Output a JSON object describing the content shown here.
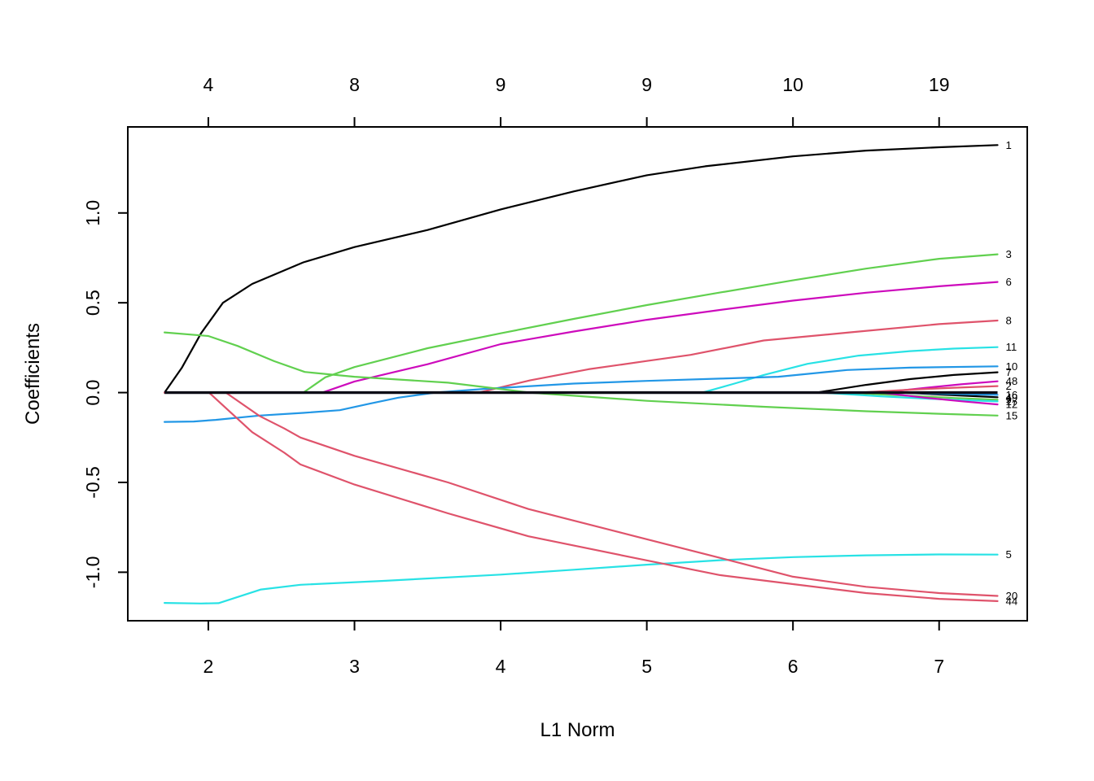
{
  "figure": {
    "background": "#ffffff"
  },
  "chart_data": {
    "type": "line",
    "title": "",
    "xlabel": "L1 Norm",
    "ylabel": "Coefficients",
    "xlim": [
      1.449,
      7.603
    ],
    "ylim": [
      -1.27,
      1.479
    ],
    "grid": false,
    "legend_position": "right-edge-labels",
    "x_ticks": [
      2,
      3,
      4,
      5,
      6,
      7
    ],
    "x_tick_labels": [
      "2",
      "3",
      "4",
      "5",
      "6",
      "7"
    ],
    "y_ticks": [
      1.0,
      0.5,
      0.0,
      -0.5,
      -1.0
    ],
    "y_tick_labels": [
      "1.0",
      "0.5",
      "0.0",
      "-0.5",
      "-1.0"
    ],
    "top_axis": {
      "tick_values": [
        2,
        3,
        4,
        5,
        6,
        7
      ],
      "labels": [
        "4",
        "8",
        "9",
        "9",
        "10",
        "19"
      ]
    },
    "palette": {
      "black": "#000000",
      "red": "#DF536B",
      "green": "#61D04F",
      "blue": "#2297E6",
      "cyan": "#28E2E5",
      "magenta": "#CD0BBC"
    },
    "zero_line": {
      "color": "#0b0b16",
      "width": 3.4,
      "points": [
        [
          1.7,
          0
        ],
        [
          7.4,
          0
        ]
      ]
    },
    "series": [
      {
        "label": "1",
        "color": "black",
        "points": [
          [
            1.7,
            0
          ],
          [
            1.82,
            0.14
          ],
          [
            1.95,
            0.33
          ],
          [
            2.1,
            0.5
          ],
          [
            2.3,
            0.605
          ],
          [
            2.65,
            0.725
          ],
          [
            3.0,
            0.81
          ],
          [
            3.5,
            0.905
          ],
          [
            4.0,
            1.02
          ],
          [
            4.5,
            1.12
          ],
          [
            5.0,
            1.21
          ],
          [
            5.4,
            1.26
          ],
          [
            6.0,
            1.315
          ],
          [
            6.5,
            1.347
          ],
          [
            7.0,
            1.366
          ],
          [
            7.4,
            1.378
          ]
        ]
      },
      {
        "label": "3",
        "color": "green",
        "points": [
          [
            2.65,
            0
          ],
          [
            2.8,
            0.085
          ],
          [
            3.0,
            0.142
          ],
          [
            3.5,
            0.247
          ],
          [
            4.0,
            0.33
          ],
          [
            4.5,
            0.41
          ],
          [
            5.0,
            0.487
          ],
          [
            5.5,
            0.557
          ],
          [
            6.0,
            0.625
          ],
          [
            6.5,
            0.69
          ],
          [
            7.0,
            0.745
          ],
          [
            7.4,
            0.77
          ]
        ]
      },
      {
        "label": "6",
        "color": "magenta",
        "points": [
          [
            2.78,
            0
          ],
          [
            3.0,
            0.062
          ],
          [
            3.5,
            0.158
          ],
          [
            4.0,
            0.27
          ],
          [
            4.5,
            0.34
          ],
          [
            5.0,
            0.405
          ],
          [
            5.5,
            0.46
          ],
          [
            6.0,
            0.512
          ],
          [
            6.5,
            0.556
          ],
          [
            7.0,
            0.592
          ],
          [
            7.4,
            0.616
          ]
        ]
      },
      {
        "label": "8",
        "color": "red",
        "points": [
          [
            3.85,
            0
          ],
          [
            4.2,
            0.068
          ],
          [
            4.6,
            0.13
          ],
          [
            5.0,
            0.176
          ],
          [
            5.3,
            0.21
          ],
          [
            5.8,
            0.29
          ],
          [
            6.4,
            0.336
          ],
          [
            7.0,
            0.381
          ],
          [
            7.4,
            0.401
          ]
        ]
      },
      {
        "label": "11",
        "color": "cyan",
        "points": [
          [
            5.38,
            0
          ],
          [
            5.6,
            0.05
          ],
          [
            5.8,
            0.098
          ],
          [
            6.1,
            0.16
          ],
          [
            6.45,
            0.206
          ],
          [
            6.8,
            0.231
          ],
          [
            7.1,
            0.245
          ],
          [
            7.4,
            0.253
          ]
        ]
      },
      {
        "label": "10",
        "color": "blue",
        "points": [
          [
            1.7,
            -0.163
          ],
          [
            1.9,
            -0.161
          ],
          [
            2.05,
            -0.152
          ],
          [
            2.35,
            -0.128
          ],
          [
            2.65,
            -0.113
          ],
          [
            2.9,
            -0.098
          ],
          [
            3.1,
            -0.062
          ],
          [
            3.3,
            -0.028
          ],
          [
            3.55,
            0.0
          ],
          [
            3.9,
            0.021
          ],
          [
            4.5,
            0.05
          ],
          [
            5.0,
            0.065
          ],
          [
            5.5,
            0.078
          ],
          [
            5.9,
            0.088
          ],
          [
            6.37,
            0.126
          ],
          [
            6.8,
            0.139
          ],
          [
            7.4,
            0.146
          ]
        ]
      },
      {
        "label": "7",
        "color": "black",
        "points": [
          [
            6.16,
            0
          ],
          [
            6.5,
            0.043
          ],
          [
            6.8,
            0.075
          ],
          [
            7.1,
            0.098
          ],
          [
            7.4,
            0.113
          ]
        ]
      },
      {
        "label": "48",
        "color": "magenta",
        "points": [
          [
            6.6,
            0
          ],
          [
            6.9,
            0.026
          ],
          [
            7.15,
            0.046
          ],
          [
            7.4,
            0.063
          ]
        ]
      },
      {
        "label": "2",
        "color": "red",
        "points": [
          [
            6.45,
            0
          ],
          [
            6.8,
            0.016
          ],
          [
            7.1,
            0.027
          ],
          [
            7.4,
            0.036
          ]
        ]
      },
      {
        "label": "49",
        "color": "black",
        "points": [
          [
            6.75,
            0
          ],
          [
            7.05,
            -0.013
          ],
          [
            7.4,
            -0.026
          ]
        ]
      },
      {
        "label": "16",
        "color": "blue",
        "points": [
          [
            6.7,
            0
          ],
          [
            7.05,
            -0.007
          ],
          [
            7.4,
            -0.013
          ]
        ]
      },
      {
        "label": "9",
        "color": "green",
        "points": [
          [
            6.35,
            0
          ],
          [
            6.8,
            -0.018
          ],
          [
            7.1,
            -0.03
          ],
          [
            7.4,
            -0.04
          ]
        ]
      },
      {
        "label": "17",
        "color": "cyan",
        "points": [
          [
            6.2,
            0
          ],
          [
            6.6,
            -0.021
          ],
          [
            7.0,
            -0.037
          ],
          [
            7.4,
            -0.049
          ]
        ]
      },
      {
        "label": "12",
        "color": "magenta",
        "points": [
          [
            6.6,
            0
          ],
          [
            6.9,
            -0.028
          ],
          [
            7.15,
            -0.048
          ],
          [
            7.4,
            -0.066
          ]
        ]
      },
      {
        "label": "15",
        "color": "green",
        "points": [
          [
            1.7,
            0.335
          ],
          [
            2.0,
            0.315
          ],
          [
            2.2,
            0.26
          ],
          [
            2.45,
            0.175
          ],
          [
            2.66,
            0.115
          ],
          [
            3.0,
            0.088
          ],
          [
            3.64,
            0.055
          ],
          [
            4.2,
            0.0
          ],
          [
            5.0,
            -0.046
          ],
          [
            5.8,
            -0.079
          ],
          [
            6.5,
            -0.104
          ],
          [
            7.0,
            -0.118
          ],
          [
            7.4,
            -0.128
          ]
        ]
      },
      {
        "label": "5",
        "color": "cyan",
        "points": [
          [
            1.7,
            -1.171
          ],
          [
            1.95,
            -1.174
          ],
          [
            2.07,
            -1.172
          ],
          [
            2.36,
            -1.096
          ],
          [
            2.63,
            -1.07
          ],
          [
            3.2,
            -1.048
          ],
          [
            4.0,
            -1.013
          ],
          [
            4.5,
            -0.986
          ],
          [
            5.0,
            -0.958
          ],
          [
            5.5,
            -0.933
          ],
          [
            6.0,
            -0.916
          ],
          [
            6.5,
            -0.906
          ],
          [
            7.0,
            -0.901
          ],
          [
            7.4,
            -0.902
          ]
        ]
      },
      {
        "label": "20",
        "color": "red",
        "points": [
          [
            1.7,
            0
          ],
          [
            2.12,
            0
          ],
          [
            2.35,
            -0.13
          ],
          [
            2.52,
            -0.2
          ],
          [
            2.63,
            -0.25
          ],
          [
            3.0,
            -0.352
          ],
          [
            3.64,
            -0.5
          ],
          [
            4.19,
            -0.648
          ],
          [
            4.92,
            -0.8
          ],
          [
            5.5,
            -0.92
          ],
          [
            6.0,
            -1.025
          ],
          [
            6.5,
            -1.081
          ],
          [
            7.0,
            -1.116
          ],
          [
            7.4,
            -1.132
          ]
        ]
      },
      {
        "label": "44",
        "color": "red",
        "points": [
          [
            1.7,
            0
          ],
          [
            2.005,
            0
          ],
          [
            2.3,
            -0.22
          ],
          [
            2.52,
            -0.335
          ],
          [
            2.63,
            -0.4
          ],
          [
            3.0,
            -0.512
          ],
          [
            3.64,
            -0.672
          ],
          [
            4.19,
            -0.8
          ],
          [
            4.92,
            -0.921
          ],
          [
            5.5,
            -1.016
          ],
          [
            6.0,
            -1.066
          ],
          [
            6.5,
            -1.116
          ],
          [
            7.0,
            -1.148
          ],
          [
            7.4,
            -1.161
          ]
        ]
      }
    ]
  }
}
